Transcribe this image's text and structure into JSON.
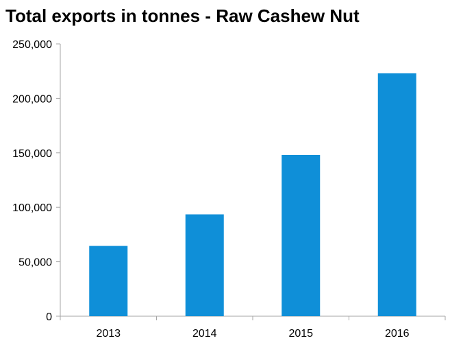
{
  "chart_data": {
    "type": "bar",
    "title": "Total exports in tonnes - Raw Cashew Nut",
    "xlabel": "",
    "ylabel": "",
    "categories": [
      "2013",
      "2014",
      "2015",
      "2016"
    ],
    "values": [
      64500,
      93500,
      148000,
      223000
    ],
    "ylim": [
      0,
      250000
    ],
    "yticks": [
      0,
      50000,
      100000,
      150000,
      200000,
      250000
    ],
    "ytick_labels": [
      "0",
      "50,000",
      "100,000",
      "150,000",
      "200,000",
      "250,000"
    ],
    "grid": false,
    "legend": "none",
    "bar_color": "#0f8fd8",
    "axis_color": "#a6a6a6"
  }
}
